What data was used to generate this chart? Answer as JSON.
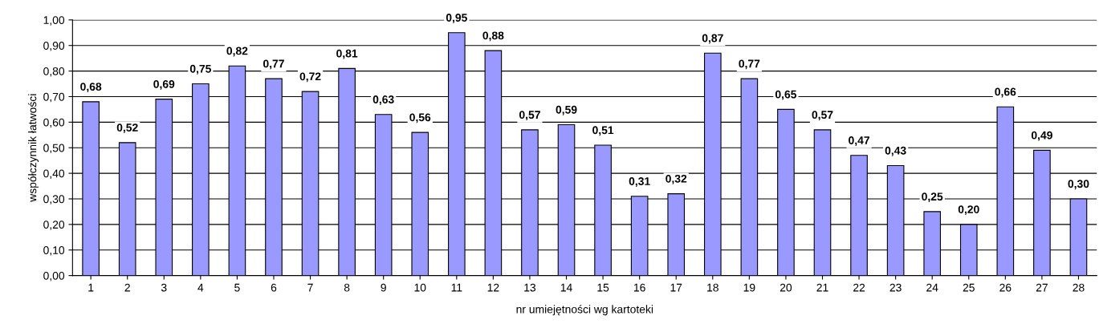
{
  "chart_data": {
    "type": "bar",
    "xlabel": "nr umiejętności wg kartoteki",
    "ylabel": "współczynnik łatwości",
    "categories": [
      "1",
      "2",
      "3",
      "4",
      "5",
      "6",
      "7",
      "8",
      "9",
      "10",
      "11",
      "12",
      "13",
      "14",
      "15",
      "16",
      "17",
      "18",
      "19",
      "20",
      "21",
      "22",
      "23",
      "24",
      "25",
      "26",
      "27",
      "28"
    ],
    "values": [
      0.68,
      0.52,
      0.69,
      0.75,
      0.82,
      0.77,
      0.72,
      0.81,
      0.63,
      0.56,
      0.95,
      0.88,
      0.57,
      0.59,
      0.51,
      0.31,
      0.32,
      0.87,
      0.77,
      0.65,
      0.57,
      0.47,
      0.43,
      0.25,
      0.2,
      0.66,
      0.49,
      0.3
    ],
    "value_labels": [
      "0,68",
      "0,52",
      "0,69",
      "0,75",
      "0,82",
      "0,77",
      "0,72",
      "0,81",
      "0,63",
      "0,56",
      "0,95",
      "0,88",
      "0,57",
      "0,59",
      "0,51",
      "0,31",
      "0,32",
      "0,87",
      "0,77",
      "0,65",
      "0,57",
      "0,47",
      "0,43",
      "0,25",
      "0,20",
      "0,66",
      "0,49",
      "0,30"
    ],
    "color": "#9999ff",
    "ylim": [
      0,
      1
    ],
    "yticks": [
      {
        "value": 0,
        "label": "0,00"
      },
      {
        "value": 0.1,
        "label": "0,10"
      },
      {
        "value": 0.2,
        "label": "0,20"
      },
      {
        "value": 0.3,
        "label": "0,30"
      },
      {
        "value": 0.4,
        "label": "0,40"
      },
      {
        "value": 0.5,
        "label": "0,50"
      },
      {
        "value": 0.6,
        "label": "0,60"
      },
      {
        "value": 0.7,
        "label": "0,70"
      },
      {
        "value": 0.8,
        "label": "0,80"
      },
      {
        "value": 0.9,
        "label": "0,90"
      },
      {
        "value": 1,
        "label": "1,00"
      }
    ],
    "grid": "y",
    "legend": false
  }
}
